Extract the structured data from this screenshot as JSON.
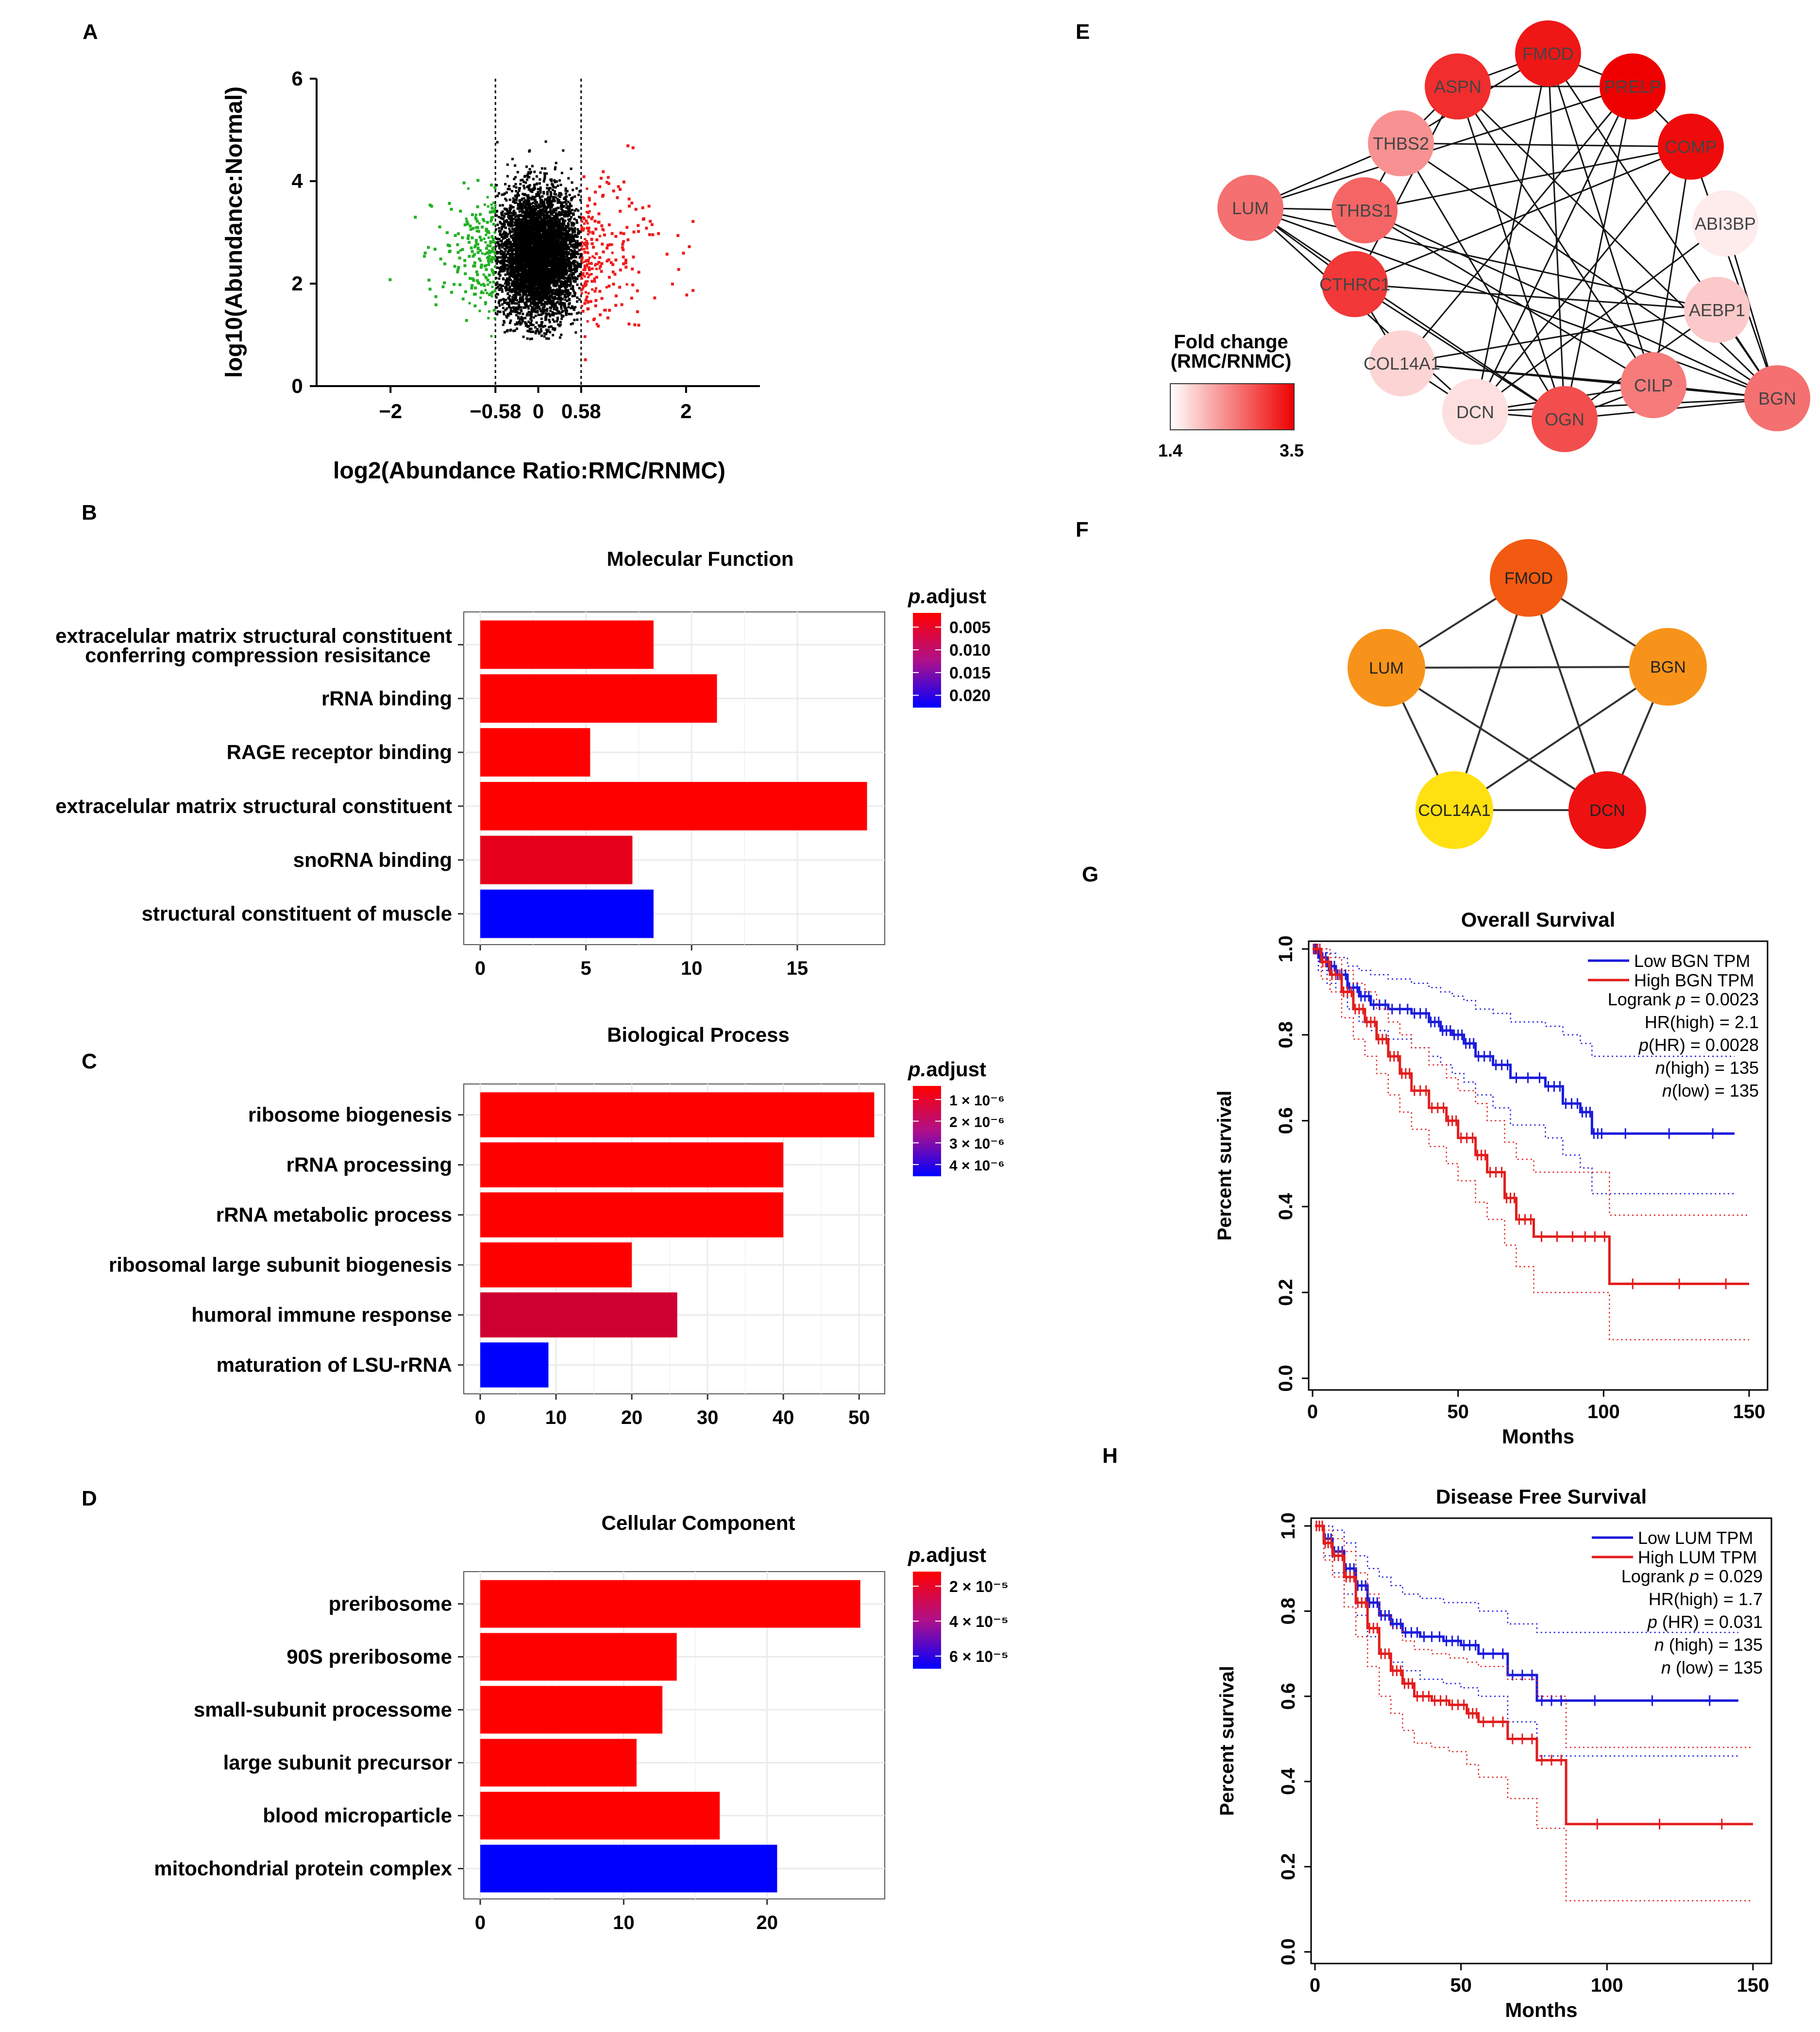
{
  "panels": {
    "A": "A",
    "B": "B",
    "C": "C",
    "D": "D",
    "E": "E",
    "F": "F",
    "G": "G",
    "H": "H"
  },
  "colors": {
    "up": "#ee1c1c",
    "down": "#22b022",
    "neutral": "#000000",
    "bar_low_p": "#ff0000",
    "bar_high_p": "#0000ff",
    "survival_low": "#1a1adb",
    "survival_high": "#e21d1d"
  },
  "chart_data": [
    {
      "id": "A",
      "type": "scatter",
      "xlabel": "log2(Abundance Ratio:RMC/RNMC)",
      "ylabel": "log10(Abundance:Normal)",
      "xlim": [
        -3,
        3
      ],
      "ylim": [
        0,
        6
      ],
      "x_ticks": [
        "-2",
        "-0.58",
        "0",
        "0.58",
        "2"
      ],
      "x_tick_values": [
        -2,
        -0.58,
        0,
        0.58,
        2
      ],
      "y_ticks": [
        "0",
        "2",
        "4",
        "6"
      ],
      "y_tick_values": [
        0,
        2,
        4,
        6
      ],
      "thresholds": [
        -0.58,
        0.58
      ],
      "groups": [
        "down (green)",
        "not significant (black)",
        "up (red)"
      ],
      "notes": "dense cloud of several thousand proteins; green below -0.58, red above 0.58"
    },
    {
      "id": "B",
      "type": "bar",
      "title": "Molecular Function",
      "legend_title": "p.adjust",
      "legend_ticks": [
        "0.005",
        "0.010",
        "0.015",
        "0.020"
      ],
      "xlim": [
        0,
        19
      ],
      "x_ticks": [
        "0",
        "5",
        "10",
        "15"
      ],
      "x_tick_values": [
        0,
        5,
        10,
        15
      ],
      "categories": [
        "extracelular matrix structural constituent conferring compression resisitance",
        "rRNA binding",
        "RAGE receptor binding",
        "extracelular matrix structural constituent",
        "snoRNA binding",
        "structural constituent of muscle"
      ],
      "labels_line1": [
        "extracelular matrix structural constituent",
        "rRNA binding",
        "RAGE receptor binding",
        "extracelular matrix structural constituent",
        "snoRNA binding",
        "structural constituent of muscle"
      ],
      "labels_line2": [
        "conferring compression resisitance",
        "",
        "",
        "",
        "",
        ""
      ],
      "values": [
        8.2,
        11.2,
        5.2,
        18.3,
        7.2,
        8.2
      ],
      "p_adjust": [
        0.001,
        0.001,
        0.001,
        0.001,
        0.003,
        0.021
      ],
      "p_range": [
        0.001,
        0.021
      ]
    },
    {
      "id": "C",
      "type": "bar",
      "title": "Biological Process",
      "legend_title": "p.adjust",
      "legend_ticks": [
        "1 × 10⁻⁶",
        "2 × 10⁻⁶",
        "3 × 10⁻⁶",
        "4 × 10⁻⁶"
      ],
      "xlim": [
        0,
        53
      ],
      "x_ticks": [
        "0",
        "10",
        "20",
        "30",
        "40",
        "50"
      ],
      "x_tick_values": [
        0,
        10,
        20,
        30,
        40,
        50
      ],
      "categories": [
        "ribosome biogenesis",
        "rRNA processing",
        "rRNA metabolic process",
        "ribosomal large subunit biogenesis",
        "humoral immune response",
        "maturation of LSU-rRNA"
      ],
      "labels_line1": [
        "ribosome biogenesis",
        "rRNA processing",
        "rRNA metabolic process",
        "ribosomal large subunit biogenesis",
        "humoral immune response",
        "maturation of LSU-rRNA"
      ],
      "labels_line2": [
        "",
        "",
        "",
        "",
        "",
        ""
      ],
      "values": [
        52,
        40,
        40,
        20,
        26,
        9
      ],
      "p_adjust": [
        0.0,
        0.0,
        0.0,
        0.0,
        0.8,
        4.2
      ],
      "p_range": [
        0.0,
        4.2
      ]
    },
    {
      "id": "D",
      "type": "bar",
      "title": "Cellular Component",
      "legend_title": "p.adjust",
      "legend_ticks": [
        "2 × 10⁻⁵",
        "4 × 10⁻⁵",
        "6 × 10⁻⁵"
      ],
      "xlim": [
        0,
        28
      ],
      "x_ticks": [
        "0",
        "10",
        "20"
      ],
      "x_tick_values": [
        0,
        10,
        20
      ],
      "categories": [
        "preribosome",
        "90S preribosome",
        "small-subunit processome",
        "large subunit precursor",
        "blood microparticle",
        "mitochondrial protein complex"
      ],
      "labels_line1": [
        "preribosome",
        "90S preribosome",
        "small-subunit processome",
        "large subunit precursor",
        "blood microparticle",
        "mitochondrial protein complex"
      ],
      "labels_line2": [
        "",
        "",
        "",
        "",
        "",
        ""
      ],
      "values": [
        26.5,
        13.7,
        12.7,
        10.9,
        16.7,
        20.7
      ],
      "p_adjust": [
        0.0,
        0.0,
        0.0,
        0.0,
        0.0,
        6.8
      ],
      "p_range": [
        0.0,
        6.8
      ]
    },
    {
      "id": "G",
      "type": "line",
      "title": "Overall Survival",
      "xlabel": "Months",
      "ylabel": "Percent survival",
      "xlim": [
        0,
        155
      ],
      "ylim": [
        0,
        1.05
      ],
      "x_ticks": [
        "0",
        "50",
        "100",
        "150"
      ],
      "x_tick_values": [
        0,
        50,
        100,
        150
      ],
      "y_ticks": [
        "0.0",
        "0.2",
        "0.4",
        "0.6",
        "0.8",
        "1.0"
      ],
      "y_tick_values": [
        0,
        0.2,
        0.4,
        0.6,
        0.8,
        1.0
      ],
      "legend": [
        "Low BGN TPM",
        "High BGN TPM"
      ],
      "stats_line1": [
        "Logrank ",
        "p",
        " = 0.0023"
      ],
      "stats_line2": [
        "HR(high) = 2.1"
      ],
      "stats_line3": [
        "p",
        "(HR) = 0.0028"
      ],
      "stats_line4": [
        "n",
        "(high) = 135"
      ],
      "stats_line5": [
        "n",
        "(low) = 135"
      ],
      "series": [
        {
          "name": "Low BGN TPM",
          "x": [
            0,
            2,
            5,
            8,
            12,
            16,
            20,
            26,
            34,
            40,
            44,
            48,
            52,
            56,
            62,
            68,
            80,
            86,
            92,
            96,
            100,
            145
          ],
          "y": [
            1.0,
            0.98,
            0.96,
            0.94,
            0.91,
            0.89,
            0.87,
            0.86,
            0.85,
            0.83,
            0.81,
            0.8,
            0.78,
            0.75,
            0.73,
            0.7,
            0.68,
            0.64,
            0.62,
            0.57,
            0.57,
            0.57
          ],
          "upper": [
            1.0,
            1.0,
            0.99,
            0.98,
            0.96,
            0.95,
            0.94,
            0.93,
            0.92,
            0.91,
            0.9,
            0.89,
            0.88,
            0.86,
            0.85,
            0.83,
            0.82,
            0.8,
            0.78,
            0.75,
            0.75,
            0.75
          ],
          "lower": [
            1.0,
            0.95,
            0.92,
            0.9,
            0.86,
            0.83,
            0.81,
            0.79,
            0.77,
            0.75,
            0.73,
            0.71,
            0.69,
            0.66,
            0.63,
            0.59,
            0.56,
            0.52,
            0.49,
            0.43,
            0.43,
            0.43
          ]
        },
        {
          "name": "High BGN TPM",
          "x": [
            0,
            3,
            6,
            10,
            14,
            18,
            22,
            26,
            30,
            34,
            40,
            46,
            50,
            56,
            60,
            66,
            70,
            76,
            92,
            102,
            150
          ],
          "y": [
            1.0,
            0.97,
            0.94,
            0.9,
            0.86,
            0.83,
            0.79,
            0.75,
            0.71,
            0.67,
            0.63,
            0.6,
            0.56,
            0.52,
            0.48,
            0.42,
            0.37,
            0.33,
            0.33,
            0.22,
            0.22
          ],
          "upper": [
            1.0,
            1.0,
            0.98,
            0.95,
            0.92,
            0.9,
            0.86,
            0.83,
            0.8,
            0.77,
            0.73,
            0.7,
            0.67,
            0.64,
            0.6,
            0.55,
            0.51,
            0.48,
            0.48,
            0.38,
            0.38
          ],
          "lower": [
            1.0,
            0.93,
            0.9,
            0.84,
            0.79,
            0.75,
            0.71,
            0.66,
            0.62,
            0.58,
            0.54,
            0.5,
            0.46,
            0.41,
            0.37,
            0.31,
            0.26,
            0.2,
            0.2,
            0.09,
            0.09
          ]
        }
      ]
    },
    {
      "id": "H",
      "type": "line",
      "title": "Disease Free Survival",
      "xlabel": "Months",
      "ylabel": "Percent survival",
      "xlim": [
        0,
        155
      ],
      "ylim": [
        0,
        1.05
      ],
      "x_ticks": [
        "0",
        "50",
        "100",
        "150"
      ],
      "x_tick_values": [
        0,
        50,
        100,
        150
      ],
      "y_ticks": [
        "0.0",
        "0.2",
        "0.4",
        "0.6",
        "0.8",
        "1.0"
      ],
      "y_tick_values": [
        0,
        0.2,
        0.4,
        0.6,
        0.8,
        1.0
      ],
      "legend": [
        "Low LUM TPM",
        "High LUM TPM"
      ],
      "stats_line1": [
        "Logrank ",
        "p",
        " = 0.029"
      ],
      "stats_line2": [
        "HR(high) = 1.7"
      ],
      "stats_line3": [
        "p",
        " (HR) = 0.031"
      ],
      "stats_line4": [
        "n",
        " (high) = 135"
      ],
      "stats_line5": [
        "n",
        " (low) = 135"
      ],
      "series": [
        {
          "name": "Low LUM TPM",
          "x": [
            0,
            3,
            6,
            10,
            14,
            18,
            22,
            26,
            30,
            36,
            44,
            50,
            56,
            66,
            76,
            86,
            145
          ],
          "y": [
            1.0,
            0.97,
            0.94,
            0.9,
            0.86,
            0.82,
            0.79,
            0.77,
            0.75,
            0.74,
            0.73,
            0.72,
            0.7,
            0.65,
            0.59,
            0.59,
            0.59
          ],
          "upper": [
            1.0,
            1.0,
            0.99,
            0.96,
            0.93,
            0.9,
            0.88,
            0.86,
            0.84,
            0.83,
            0.82,
            0.82,
            0.8,
            0.77,
            0.75,
            0.75,
            0.75
          ],
          "lower": [
            1.0,
            0.93,
            0.89,
            0.84,
            0.79,
            0.74,
            0.7,
            0.68,
            0.66,
            0.64,
            0.63,
            0.62,
            0.6,
            0.54,
            0.46,
            0.46,
            0.46
          ]
        },
        {
          "name": "High LUM TPM",
          "x": [
            0,
            3,
            6,
            10,
            14,
            18,
            22,
            26,
            30,
            34,
            40,
            46,
            52,
            56,
            66,
            76,
            86,
            150
          ],
          "y": [
            1.0,
            0.96,
            0.93,
            0.88,
            0.82,
            0.76,
            0.7,
            0.66,
            0.63,
            0.6,
            0.59,
            0.58,
            0.56,
            0.54,
            0.5,
            0.45,
            0.3,
            0.3
          ],
          "upper": [
            1.0,
            0.99,
            0.97,
            0.94,
            0.89,
            0.84,
            0.79,
            0.76,
            0.73,
            0.71,
            0.7,
            0.69,
            0.68,
            0.67,
            0.64,
            0.6,
            0.48,
            0.48
          ],
          "lower": [
            1.0,
            0.92,
            0.88,
            0.81,
            0.74,
            0.67,
            0.6,
            0.56,
            0.52,
            0.49,
            0.48,
            0.47,
            0.44,
            0.41,
            0.36,
            0.29,
            0.12,
            0.12
          ]
        }
      ]
    }
  ],
  "network_E": {
    "legend_title_line1": "Fold change",
    "legend_title_line2": "(RMC/RNMC)",
    "legend_min": "1.4",
    "legend_max": "3.5",
    "nodes": [
      {
        "name": "FMOD",
        "fold": 3.3
      },
      {
        "name": "ASPN",
        "fold": 3.1
      },
      {
        "name": "PRELP",
        "fold": 3.5
      },
      {
        "name": "THBS2",
        "fold": 2.2
      },
      {
        "name": "COMP",
        "fold": 3.4
      },
      {
        "name": "LUM",
        "fold": 2.5
      },
      {
        "name": "THBS1",
        "fold": 2.6
      },
      {
        "name": "ABI3BP",
        "fold": 1.4
      },
      {
        "name": "CTHRC1",
        "fold": 3.0
      },
      {
        "name": "AEBP1",
        "fold": 1.7
      },
      {
        "name": "COL14A1",
        "fold": 1.6
      },
      {
        "name": "CILP",
        "fold": 2.4
      },
      {
        "name": "BGN",
        "fold": 2.5
      },
      {
        "name": "DCN",
        "fold": 1.5
      },
      {
        "name": "OGN",
        "fold": 2.8
      }
    ],
    "edges": [
      [
        "FMOD",
        "ASPN"
      ],
      [
        "FMOD",
        "PRELP"
      ],
      [
        "FMOD",
        "THBS2"
      ],
      [
        "FMOD",
        "DCN"
      ],
      [
        "FMOD",
        "CILP"
      ],
      [
        "FMOD",
        "OGN"
      ],
      [
        "FMOD",
        "BGN"
      ],
      [
        "ASPN",
        "PRELP"
      ],
      [
        "ASPN",
        "THBS2"
      ],
      [
        "ASPN",
        "CTHRC1"
      ],
      [
        "ASPN",
        "CILP"
      ],
      [
        "ASPN",
        "BGN"
      ],
      [
        "ASPN",
        "OGN"
      ],
      [
        "PRELP",
        "COMP"
      ],
      [
        "PRELP",
        "LUM"
      ],
      [
        "PRELP",
        "COL14A1"
      ],
      [
        "PRELP",
        "OGN"
      ],
      [
        "PRELP",
        "DCN"
      ],
      [
        "THBS2",
        "THBS1"
      ],
      [
        "THBS2",
        "LUM"
      ],
      [
        "THBS2",
        "COMP"
      ],
      [
        "THBS2",
        "OGN"
      ],
      [
        "THBS2",
        "BGN"
      ],
      [
        "COMP",
        "THBS1"
      ],
      [
        "COMP",
        "CTHRC1"
      ],
      [
        "COMP",
        "DCN"
      ],
      [
        "COMP",
        "CILP"
      ],
      [
        "COMP",
        "BGN"
      ],
      [
        "LUM",
        "THBS1"
      ],
      [
        "LUM",
        "CTHRC1"
      ],
      [
        "LUM",
        "AEBP1"
      ],
      [
        "LUM",
        "DCN"
      ],
      [
        "LUM",
        "OGN"
      ],
      [
        "LUM",
        "BGN"
      ],
      [
        "THBS1",
        "CILP"
      ],
      [
        "THBS1",
        "BGN"
      ],
      [
        "ABI3BP",
        "BGN"
      ],
      [
        "ABI3BP",
        "DCN"
      ],
      [
        "CTHRC1",
        "AEBP1"
      ],
      [
        "CTHRC1",
        "COL14A1"
      ],
      [
        "CTHRC1",
        "OGN"
      ],
      [
        "AEBP1",
        "OGN"
      ],
      [
        "AEBP1",
        "BGN"
      ],
      [
        "AEBP1",
        "COL14A1"
      ],
      [
        "COL14A1",
        "DCN"
      ],
      [
        "COL14A1",
        "CILP"
      ],
      [
        "COL14A1",
        "BGN"
      ],
      [
        "CILP",
        "OGN"
      ],
      [
        "CILP",
        "DCN"
      ],
      [
        "CILP",
        "BGN"
      ],
      [
        "DCN",
        "OGN"
      ],
      [
        "OGN",
        "BGN"
      ],
      [
        "DCN",
        "BGN"
      ]
    ]
  },
  "network_F": {
    "nodes": [
      {
        "name": "FMOD",
        "color": "#f25a11"
      },
      {
        "name": "LUM",
        "color": "#f7931a"
      },
      {
        "name": "BGN",
        "color": "#f7931a"
      },
      {
        "name": "COL14A1",
        "color": "#ffe010"
      },
      {
        "name": "DCN",
        "color": "#ee1111"
      }
    ],
    "edges": [
      [
        "FMOD",
        "LUM"
      ],
      [
        "FMOD",
        "BGN"
      ],
      [
        "FMOD",
        "COL14A1"
      ],
      [
        "FMOD",
        "DCN"
      ],
      [
        "LUM",
        "BGN"
      ],
      [
        "LUM",
        "COL14A1"
      ],
      [
        "LUM",
        "DCN"
      ],
      [
        "BGN",
        "COL14A1"
      ],
      [
        "BGN",
        "DCN"
      ],
      [
        "COL14A1",
        "DCN"
      ]
    ]
  }
}
